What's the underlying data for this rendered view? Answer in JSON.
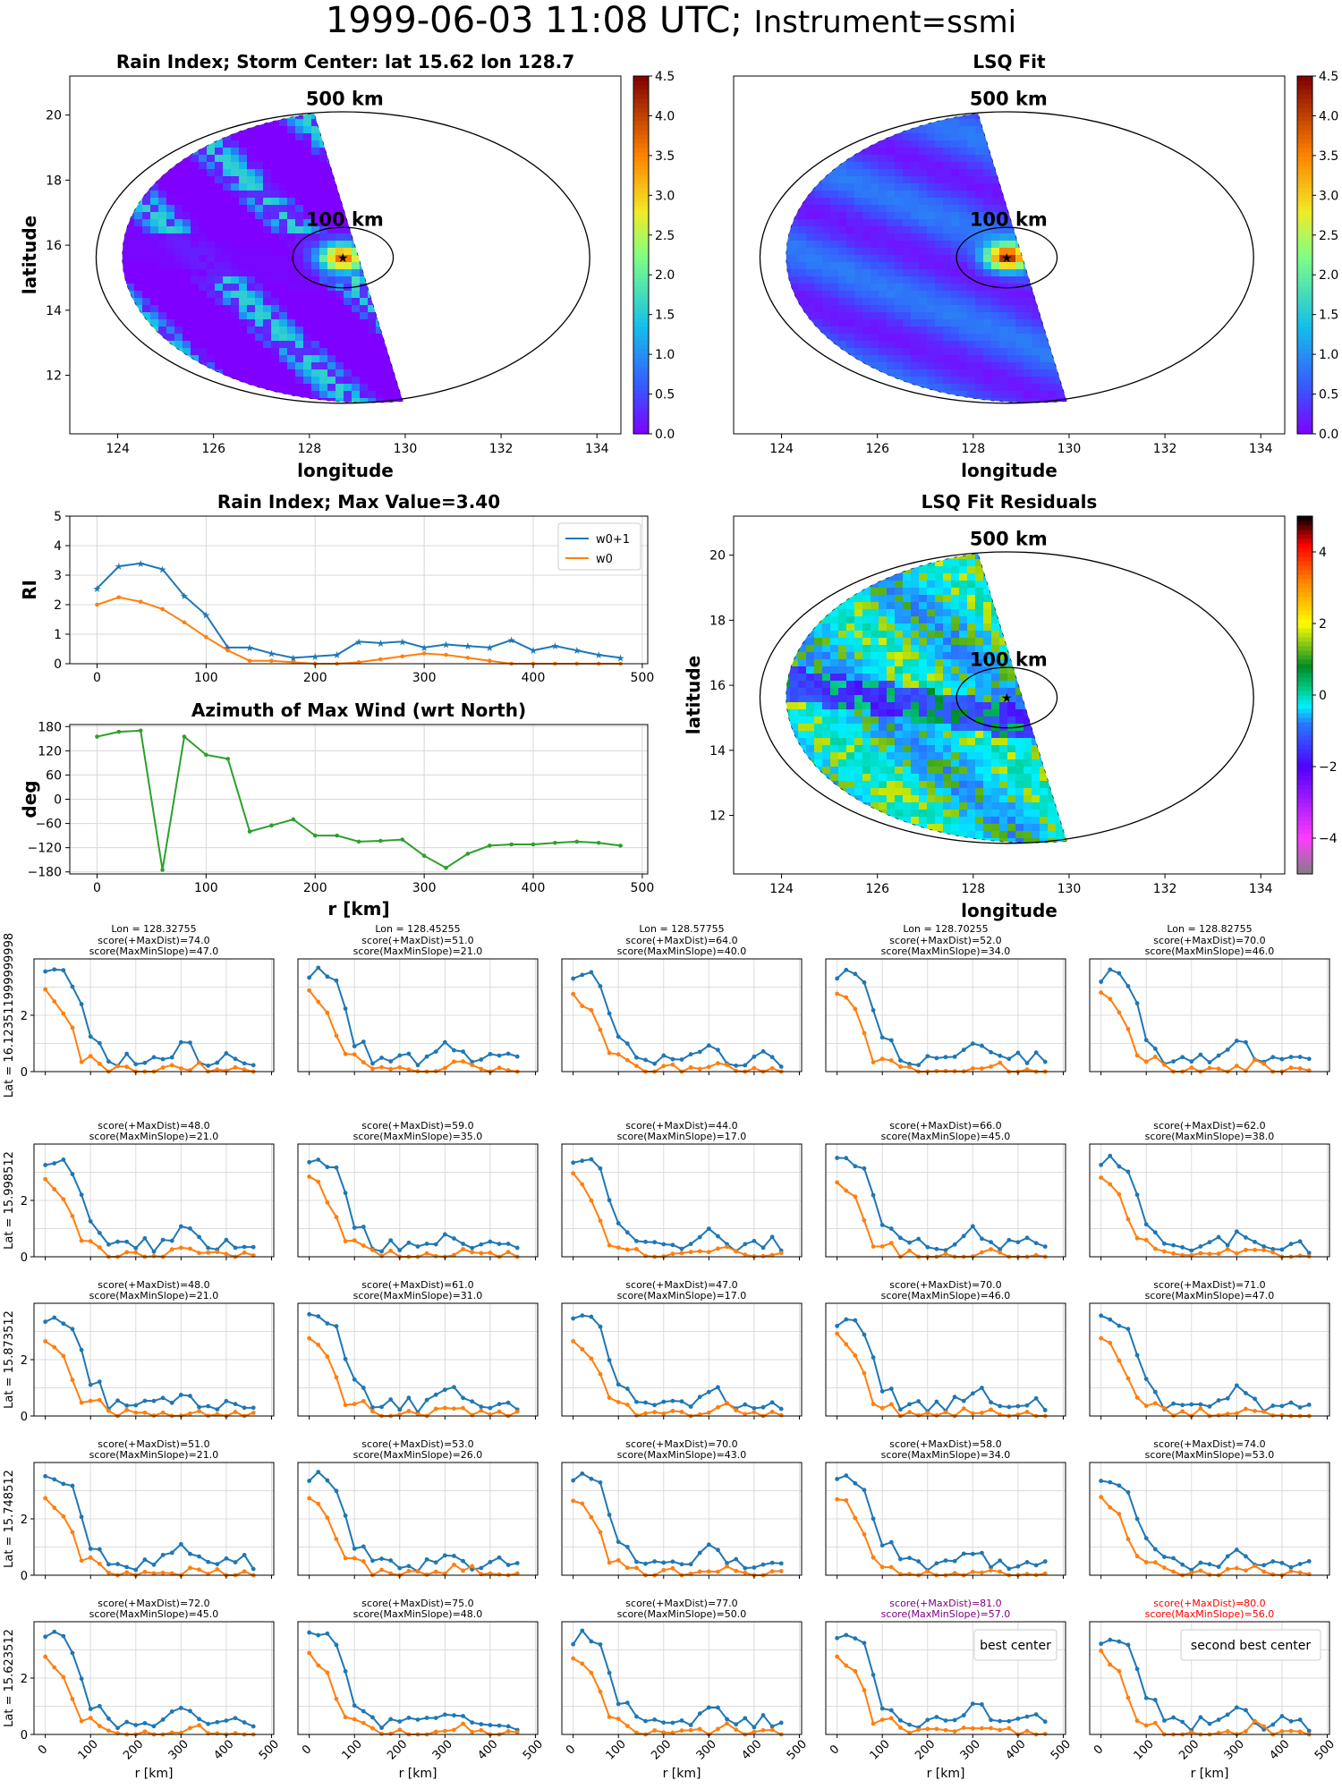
{
  "suptitle": {
    "main": "1999-06-03 11:08 UTC;",
    "sub": "Instrument=ssmi"
  },
  "labels": {
    "km500": "500 km",
    "km100": "100 km",
    "longitude": "longitude",
    "latitude": "latitude",
    "rkm": "r [km]",
    "best": "best center",
    "second": "second best center"
  },
  "colors": {
    "w0p1": "#1f77b4",
    "w0": "#ff7f0e",
    "azimuth": "#2ca02c",
    "best": "#800080",
    "second": "#ff0000"
  },
  "chart_data": [
    {
      "id": "rain_index_map",
      "type": "heatmap",
      "title": "Rain Index; Storm Center: lat 15.62 lon 128.7",
      "xlabel": "longitude",
      "ylabel": "latitude",
      "xlim": [
        123,
        134.5
      ],
      "ylim": [
        10.2,
        21.2
      ],
      "xticks": [
        124,
        126,
        128,
        130,
        132,
        134
      ],
      "yticks": [
        12,
        14,
        16,
        18,
        20
      ],
      "colorbar": {
        "min": 0,
        "max": 4.5,
        "ticks": [
          "0.0",
          "0.5",
          "1.0",
          "1.5",
          "2.0",
          "2.5",
          "3.0",
          "3.5",
          "4.0",
          "4.5"
        ],
        "colormap": "rainbow"
      },
      "storm_center": {
        "lat": 15.62,
        "lon": 128.7
      },
      "rings": [
        "500 km",
        "100 km"
      ]
    },
    {
      "id": "lsq_fit_map",
      "type": "heatmap",
      "title": "LSQ Fit",
      "xlabel": "longitude",
      "xlim": [
        123,
        134.5
      ],
      "ylim": [
        10.2,
        21.2
      ],
      "xticks": [
        124,
        126,
        128,
        130,
        132,
        134
      ],
      "colorbar": {
        "min": 0,
        "max": 4.5,
        "ticks": [
          "0.0",
          "0.5",
          "1.0",
          "1.5",
          "2.0",
          "2.5",
          "3.0",
          "3.5",
          "4.0",
          "4.5"
        ],
        "colormap": "rainbow"
      },
      "rings": [
        "500 km",
        "100 km"
      ]
    },
    {
      "id": "rain_index_profile",
      "type": "line",
      "title": "Rain Index; Max Value=3.40",
      "ylabel": "RI",
      "xlim": [
        -25,
        505
      ],
      "ylim": [
        0,
        5
      ],
      "xticks": [
        0,
        100,
        200,
        300,
        400,
        500
      ],
      "yticks": [
        0,
        1,
        2,
        3,
        4,
        5
      ],
      "legend": "top-right",
      "x": [
        0,
        20,
        40,
        60,
        80,
        100,
        120,
        140,
        160,
        180,
        200,
        220,
        240,
        260,
        280,
        300,
        320,
        340,
        360,
        380,
        400,
        420,
        440,
        460,
        480
      ],
      "series": [
        {
          "name": "w0+1",
          "values": [
            2.55,
            3.3,
            3.4,
            3.2,
            2.3,
            1.65,
            0.55,
            0.55,
            0.35,
            0.2,
            0.25,
            0.3,
            0.75,
            0.7,
            0.75,
            0.55,
            0.65,
            0.6,
            0.55,
            0.8,
            0.45,
            0.6,
            0.45,
            0.3,
            0.2
          ]
        },
        {
          "name": "w0",
          "values": [
            2.0,
            2.25,
            2.1,
            1.85,
            1.4,
            0.9,
            0.45,
            0.1,
            0.1,
            0.05,
            0.0,
            0.0,
            0.05,
            0.15,
            0.25,
            0.35,
            0.3,
            0.2,
            0.1,
            0.0,
            0.0,
            0.0,
            0.0,
            0.0,
            0.0
          ]
        }
      ]
    },
    {
      "id": "lsq_residuals_map",
      "type": "heatmap",
      "title": "LSQ Fit Residuals",
      "xlabel": "longitude",
      "ylabel": "latitude",
      "xlim": [
        123,
        134.5
      ],
      "ylim": [
        10.2,
        21.2
      ],
      "xticks": [
        124,
        126,
        128,
        130,
        132,
        134
      ],
      "yticks": [
        12,
        14,
        16,
        18,
        20
      ],
      "colorbar": {
        "min": -5,
        "max": 5,
        "ticks": [
          "−4",
          "−2",
          "0",
          "2",
          "4"
        ],
        "colormap": "diverging"
      },
      "rings": [
        "500 km",
        "100 km"
      ]
    },
    {
      "id": "azimuth_profile",
      "type": "line",
      "title": "Azimuth of Max Wind (wrt North)",
      "xlabel": "r [km]",
      "ylabel": "deg",
      "xlim": [
        -25,
        505
      ],
      "ylim": [
        -185,
        185
      ],
      "xticks": [
        0,
        100,
        200,
        300,
        400,
        500
      ],
      "yticks": [
        180,
        120,
        60,
        0,
        -60,
        -120,
        -180
      ],
      "x": [
        0,
        20,
        40,
        60,
        80,
        100,
        120,
        140,
        160,
        180,
        200,
        220,
        240,
        260,
        280,
        300,
        320,
        340,
        360,
        380,
        400,
        420,
        440,
        460,
        480
      ],
      "series": [
        {
          "values": [
            155,
            167,
            170,
            -175,
            155,
            110,
            100,
            -80,
            -65,
            -50,
            -90,
            -90,
            -105,
            -103,
            -100,
            -140,
            -170,
            -135,
            -115,
            -112,
            -112,
            -108,
            -105,
            -108,
            -115
          ]
        }
      ]
    },
    {
      "id": "center_search_grid",
      "type": "line",
      "xlabel": "r [km]",
      "xlim": [
        -25,
        505
      ],
      "ylim": [
        0,
        4
      ],
      "xticks": [
        0,
        100,
        200,
        300,
        400,
        500
      ],
      "yticks": [
        0,
        2
      ],
      "columns": [
        {
          "lon_label": "Lon = 128.32755"
        },
        {
          "lon_label": "Lon = 128.45255"
        },
        {
          "lon_label": "Lon = 128.57755"
        },
        {
          "lon_label": "Lon = 128.70255"
        },
        {
          "lon_label": "Lon = 128.82755"
        }
      ],
      "rows": [
        {
          "lat_label": "Lat = 16.123511999999998",
          "cells": [
            {
              "t1": "score(+MaxDist)=74.0",
              "t2": "score(MaxMinSlope)=47.0"
            },
            {
              "t1": "score(+MaxDist)=51.0",
              "t2": "score(MaxMinSlope)=21.0"
            },
            {
              "t1": "score(+MaxDist)=64.0",
              "t2": "score(MaxMinSlope)=40.0"
            },
            {
              "t1": "score(+MaxDist)=52.0",
              "t2": "score(MaxMinSlope)=34.0"
            },
            {
              "t1": "score(+MaxDist)=70.0",
              "t2": "score(MaxMinSlope)=46.0"
            }
          ]
        },
        {
          "lat_label": "Lat = 15.998512",
          "cells": [
            {
              "t1": "score(+MaxDist)=48.0",
              "t2": "score(MaxMinSlope)=21.0"
            },
            {
              "t1": "score(+MaxDist)=59.0",
              "t2": "score(MaxMinSlope)=35.0"
            },
            {
              "t1": "score(+MaxDist)=44.0",
              "t2": "score(MaxMinSlope)=17.0"
            },
            {
              "t1": "score(+MaxDist)=66.0",
              "t2": "score(MaxMinSlope)=45.0"
            },
            {
              "t1": "score(+MaxDist)=62.0",
              "t2": "score(MaxMinSlope)=38.0"
            }
          ]
        },
        {
          "lat_label": "Lat = 15.873512",
          "cells": [
            {
              "t1": "score(+MaxDist)=48.0",
              "t2": "score(MaxMinSlope)=21.0"
            },
            {
              "t1": "score(+MaxDist)=61.0",
              "t2": "score(MaxMinSlope)=31.0"
            },
            {
              "t1": "score(+MaxDist)=47.0",
              "t2": "score(MaxMinSlope)=17.0"
            },
            {
              "t1": "score(+MaxDist)=70.0",
              "t2": "score(MaxMinSlope)=46.0"
            },
            {
              "t1": "score(+MaxDist)=71.0",
              "t2": "score(MaxMinSlope)=47.0"
            }
          ]
        },
        {
          "lat_label": "Lat = 15.748512",
          "cells": [
            {
              "t1": "score(+MaxDist)=51.0",
              "t2": "score(MaxMinSlope)=21.0"
            },
            {
              "t1": "score(+MaxDist)=53.0",
              "t2": "score(MaxMinSlope)=26.0"
            },
            {
              "t1": "score(+MaxDist)=70.0",
              "t2": "score(MaxMinSlope)=43.0"
            },
            {
              "t1": "score(+MaxDist)=58.0",
              "t2": "score(MaxMinSlope)=34.0"
            },
            {
              "t1": "score(+MaxDist)=74.0",
              "t2": "score(MaxMinSlope)=53.0"
            }
          ]
        },
        {
          "lat_label": "Lat = 15.623512",
          "cells": [
            {
              "t1": "score(+MaxDist)=72.0",
              "t2": "score(MaxMinSlope)=45.0"
            },
            {
              "t1": "score(+MaxDist)=75.0",
              "t2": "score(MaxMinSlope)=48.0"
            },
            {
              "t1": "score(+MaxDist)=77.0",
              "t2": "score(MaxMinSlope)=50.0"
            },
            {
              "t1": "score(+MaxDist)=81.0",
              "t2": "score(MaxMinSlope)=57.0",
              "highlight": "best"
            },
            {
              "t1": "score(+MaxDist)=80.0",
              "t2": "score(MaxMinSlope)=56.0",
              "highlight": "second"
            }
          ]
        }
      ]
    }
  ]
}
